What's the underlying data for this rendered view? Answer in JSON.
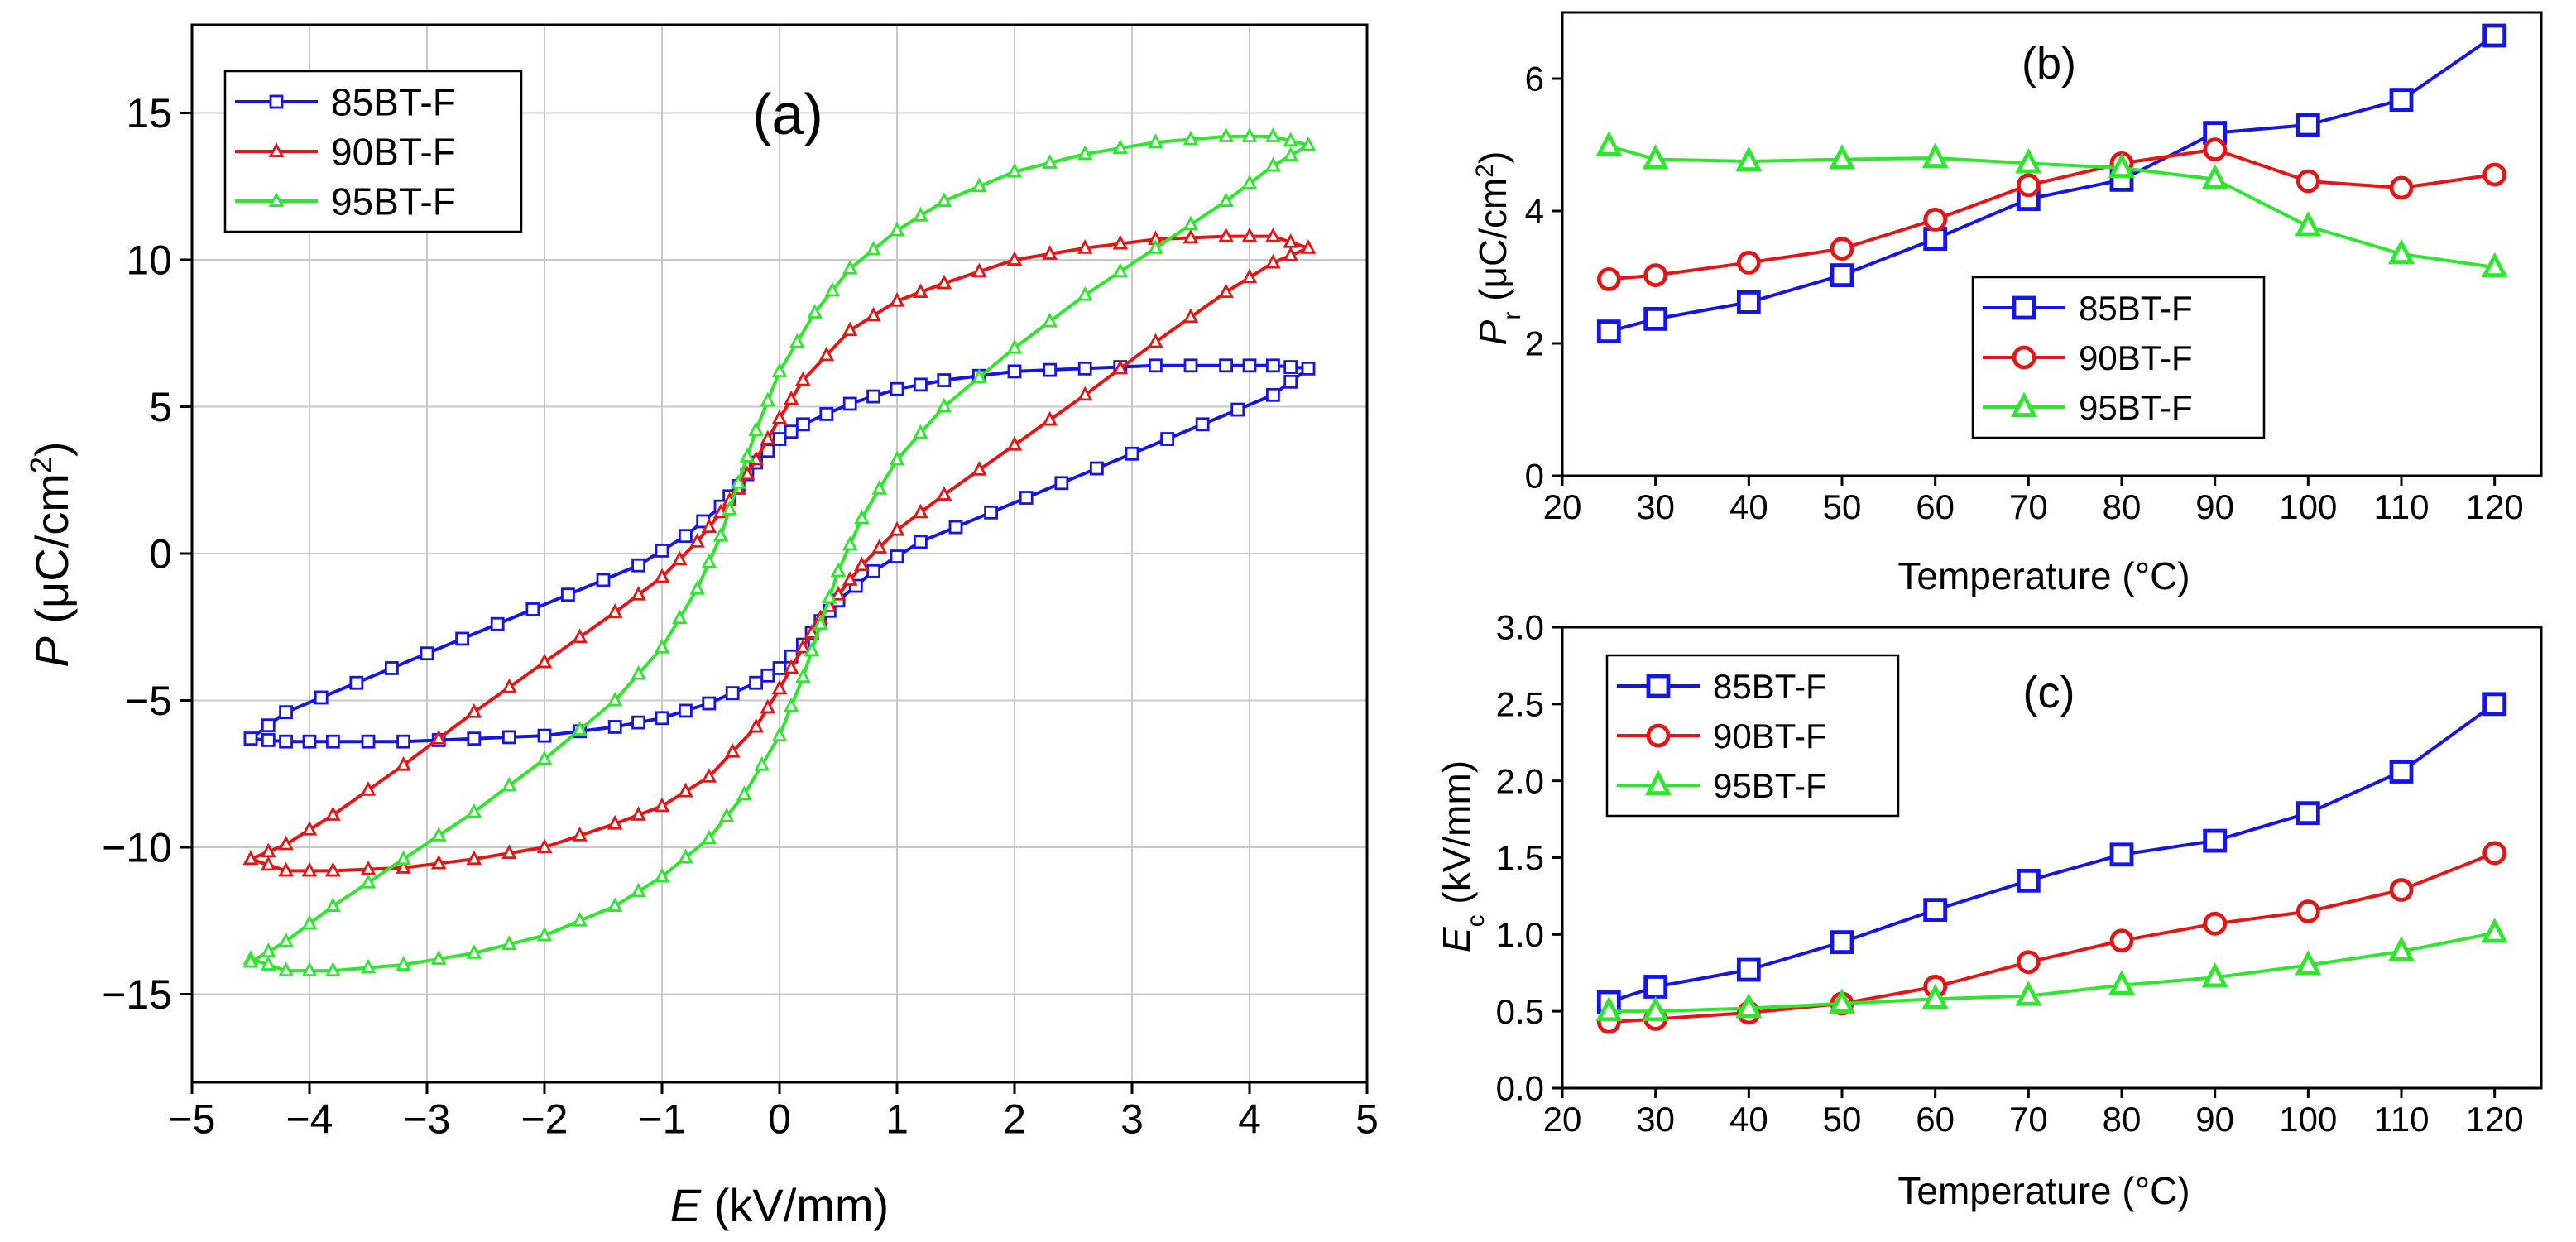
{
  "chart_data": [
    {
      "id": "a",
      "type": "line",
      "panel_label": "(a)",
      "xlabel_var": "E",
      "xlabel_unit": " (kV/mm)",
      "ylabel_var": "P",
      "ylabel_unit_pre": " (μC/cm",
      "ylabel_unit_sup": "2",
      "ylabel_unit_post": ")",
      "xlim": [
        -5,
        5
      ],
      "ylim": [
        -18,
        18
      ],
      "xticks": [
        -5,
        -4,
        -3,
        -2,
        -1,
        0,
        1,
        2,
        3,
        4,
        5
      ],
      "xtick_labels": [
        "−5",
        "−4",
        "−3",
        "−2",
        "−1",
        "0",
        "1",
        "2",
        "3",
        "4",
        "5"
      ],
      "yticks": [
        -15,
        -10,
        -5,
        0,
        5,
        10,
        15
      ],
      "ytick_labels": [
        "−15",
        "−10",
        "−5",
        "0",
        "5",
        "10",
        "15"
      ],
      "grid": true,
      "legend_position": "top-left",
      "series": [
        {
          "name": "85BT-F",
          "color": "#1515e6",
          "marker": "square",
          "upper": [
            [
              -4.5,
              -6.3
            ],
            [
              -4.2,
              -6.4
            ],
            [
              -3.8,
              -6.4
            ],
            [
              -3.2,
              -6.4
            ],
            [
              -2.6,
              -6.3
            ],
            [
              -2.0,
              -6.2
            ],
            [
              -1.4,
              -5.9
            ],
            [
              -1.0,
              -5.6
            ],
            [
              -0.6,
              -5.1
            ],
            [
              -0.2,
              -4.4
            ],
            [
              0.0,
              -3.9
            ],
            [
              0.2,
              -3.1
            ],
            [
              0.35,
              -2.3
            ],
            [
              0.5,
              -1.6
            ],
            [
              0.8,
              -0.6
            ],
            [
              1.2,
              0.4
            ],
            [
              1.8,
              1.4
            ],
            [
              2.4,
              2.4
            ],
            [
              3.0,
              3.4
            ],
            [
              3.6,
              4.4
            ],
            [
              4.2,
              5.4
            ],
            [
              4.5,
              6.3
            ]
          ],
          "lower": [
            [
              4.5,
              6.3
            ],
            [
              4.2,
              6.4
            ],
            [
              3.8,
              6.4
            ],
            [
              3.2,
              6.4
            ],
            [
              2.6,
              6.3
            ],
            [
              2.0,
              6.2
            ],
            [
              1.4,
              5.9
            ],
            [
              1.0,
              5.6
            ],
            [
              0.6,
              5.1
            ],
            [
              0.2,
              4.4
            ],
            [
              0.0,
              3.9
            ],
            [
              -0.2,
              3.1
            ],
            [
              -0.35,
              2.3
            ],
            [
              -0.5,
              1.6
            ],
            [
              -0.8,
              0.6
            ],
            [
              -1.2,
              -0.4
            ],
            [
              -1.8,
              -1.4
            ],
            [
              -2.4,
              -2.4
            ],
            [
              -3.0,
              -3.4
            ],
            [
              -3.6,
              -4.4
            ],
            [
              -4.2,
              -5.4
            ],
            [
              -4.5,
              -6.3
            ]
          ]
        },
        {
          "name": "90BT-F",
          "color": "#e61515",
          "marker": "triangle",
          "upper": [
            [
              -4.5,
              -10.4
            ],
            [
              -4.2,
              -10.8
            ],
            [
              -3.8,
              -10.8
            ],
            [
              -3.2,
              -10.7
            ],
            [
              -2.6,
              -10.4
            ],
            [
              -2.0,
              -10.0
            ],
            [
              -1.4,
              -9.2
            ],
            [
              -1.0,
              -8.6
            ],
            [
              -0.6,
              -7.6
            ],
            [
              -0.2,
              -5.9
            ],
            [
              0.0,
              -4.6
            ],
            [
              0.2,
              -3.2
            ],
            [
              0.35,
              -2.2
            ],
            [
              0.5,
              -1.4
            ],
            [
              0.7,
              -0.4
            ],
            [
              1.0,
              0.8
            ],
            [
              1.4,
              2.0
            ],
            [
              2.0,
              3.7
            ],
            [
              2.6,
              5.4
            ],
            [
              3.2,
              7.2
            ],
            [
              3.8,
              8.9
            ],
            [
              4.2,
              9.9
            ],
            [
              4.5,
              10.4
            ]
          ],
          "lower": [
            [
              4.5,
              10.4
            ],
            [
              4.2,
              10.8
            ],
            [
              3.8,
              10.8
            ],
            [
              3.2,
              10.7
            ],
            [
              2.6,
              10.4
            ],
            [
              2.0,
              10.0
            ],
            [
              1.4,
              9.2
            ],
            [
              1.0,
              8.6
            ],
            [
              0.6,
              7.6
            ],
            [
              0.2,
              5.9
            ],
            [
              0.0,
              4.6
            ],
            [
              -0.2,
              3.2
            ],
            [
              -0.35,
              2.2
            ],
            [
              -0.5,
              1.4
            ],
            [
              -0.7,
              0.4
            ],
            [
              -1.0,
              -0.8
            ],
            [
              -1.4,
              -2.0
            ],
            [
              -2.0,
              -3.7
            ],
            [
              -2.6,
              -5.4
            ],
            [
              -3.2,
              -7.2
            ],
            [
              -3.8,
              -8.9
            ],
            [
              -4.2,
              -9.9
            ],
            [
              -4.5,
              -10.4
            ]
          ]
        },
        {
          "name": "95BT-F",
          "color": "#2ee62e",
          "marker": "triangle",
          "upper": [
            [
              -4.5,
              -13.8
            ],
            [
              -4.2,
              -14.2
            ],
            [
              -3.8,
              -14.2
            ],
            [
              -3.2,
              -14.0
            ],
            [
              -2.6,
              -13.6
            ],
            [
              -2.0,
              -13.0
            ],
            [
              -1.4,
              -12.0
            ],
            [
              -1.0,
              -11.0
            ],
            [
              -0.6,
              -9.7
            ],
            [
              -0.3,
              -8.2
            ],
            [
              0.0,
              -6.2
            ],
            [
              0.2,
              -4.2
            ],
            [
              0.35,
              -2.4
            ],
            [
              0.5,
              -0.6
            ],
            [
              0.7,
              1.2
            ],
            [
              1.0,
              3.2
            ],
            [
              1.4,
              5.0
            ],
            [
              2.0,
              7.0
            ],
            [
              2.6,
              8.8
            ],
            [
              3.2,
              10.4
            ],
            [
              3.8,
              12.0
            ],
            [
              4.2,
              13.2
            ],
            [
              4.5,
              13.9
            ]
          ],
          "lower": [
            [
              4.5,
              13.9
            ],
            [
              4.2,
              14.2
            ],
            [
              3.8,
              14.2
            ],
            [
              3.2,
              14.0
            ],
            [
              2.6,
              13.6
            ],
            [
              2.0,
              13.0
            ],
            [
              1.4,
              12.0
            ],
            [
              1.0,
              11.0
            ],
            [
              0.6,
              9.7
            ],
            [
              0.3,
              8.2
            ],
            [
              0.0,
              6.2
            ],
            [
              -0.2,
              4.2
            ],
            [
              -0.35,
              2.4
            ],
            [
              -0.5,
              0.6
            ],
            [
              -0.7,
              -1.2
            ],
            [
              -1.0,
              -3.2
            ],
            [
              -1.4,
              -5.0
            ],
            [
              -2.0,
              -7.0
            ],
            [
              -2.6,
              -8.8
            ],
            [
              -3.2,
              -10.4
            ],
            [
              -3.8,
              -12.0
            ],
            [
              -4.2,
              -13.2
            ],
            [
              -4.5,
              -13.9
            ]
          ]
        }
      ]
    },
    {
      "id": "b",
      "type": "line",
      "panel_label": "(b)",
      "xlabel": "Temperature (°C)",
      "ylabel_var": "P",
      "ylabel_sub": "r",
      "ylabel_unit_pre": " (μC/cm",
      "ylabel_unit_sup": "2",
      "ylabel_unit_post": ")",
      "xlim": [
        20,
        125
      ],
      "ylim": [
        0,
        7
      ],
      "xticks": [
        20,
        30,
        40,
        50,
        60,
        70,
        80,
        90,
        100,
        110,
        120
      ],
      "xtick_labels": [
        "20",
        "30",
        "40",
        "50",
        "60",
        "70",
        "80",
        "90",
        "100",
        "110",
        "120"
      ],
      "yticks": [
        0,
        2,
        4,
        6
      ],
      "ytick_labels": [
        "0",
        "2",
        "4",
        "6"
      ],
      "grid": false,
      "legend_position": "center-right",
      "x": [
        25,
        30,
        40,
        50,
        60,
        70,
        80,
        90,
        100,
        110,
        120
      ],
      "series": [
        {
          "name": "85BT-F",
          "color": "#1515e6",
          "marker": "square",
          "values": [
            2.18,
            2.37,
            2.62,
            3.03,
            3.58,
            4.18,
            4.47,
            5.18,
            5.3,
            5.68,
            6.65
          ]
        },
        {
          "name": "90BT-F",
          "color": "#e61515",
          "marker": "circle",
          "values": [
            2.97,
            3.03,
            3.22,
            3.43,
            3.87,
            4.39,
            4.72,
            4.93,
            4.45,
            4.35,
            4.55
          ]
        },
        {
          "name": "95BT-F",
          "color": "#2ee62e",
          "marker": "triangle",
          "values": [
            4.98,
            4.78,
            4.75,
            4.78,
            4.8,
            4.72,
            4.65,
            4.48,
            3.77,
            3.35,
            3.15
          ]
        }
      ]
    },
    {
      "id": "c",
      "type": "line",
      "panel_label": "(c)",
      "xlabel": "Temperature (°C)",
      "ylabel_var": "E",
      "ylabel_sub": "c",
      "ylabel_unit": " (kV/mm)",
      "xlim": [
        20,
        125
      ],
      "ylim": [
        0,
        3
      ],
      "xticks": [
        20,
        30,
        40,
        50,
        60,
        70,
        80,
        90,
        100,
        110,
        120
      ],
      "xtick_labels": [
        "20",
        "30",
        "40",
        "50",
        "60",
        "70",
        "80",
        "90",
        "100",
        "110",
        "120"
      ],
      "yticks": [
        0,
        0.5,
        1.0,
        1.5,
        2.0,
        2.5,
        3.0
      ],
      "ytick_labels": [
        "0.0",
        "0.5",
        "1.0",
        "1.5",
        "2.0",
        "2.5",
        "3.0"
      ],
      "grid": false,
      "legend_position": "top-left",
      "x": [
        25,
        30,
        40,
        50,
        60,
        70,
        80,
        90,
        100,
        110,
        120
      ],
      "series": [
        {
          "name": "85BT-F",
          "color": "#1515e6",
          "marker": "square",
          "values": [
            0.56,
            0.66,
            0.77,
            0.95,
            1.16,
            1.35,
            1.52,
            1.61,
            1.79,
            2.06,
            2.5
          ]
        },
        {
          "name": "90BT-F",
          "color": "#e61515",
          "marker": "circle",
          "values": [
            0.43,
            0.45,
            0.49,
            0.55,
            0.66,
            0.82,
            0.96,
            1.07,
            1.15,
            1.29,
            1.53
          ]
        },
        {
          "name": "95BT-F",
          "color": "#2ee62e",
          "marker": "triangle",
          "values": [
            0.5,
            0.5,
            0.52,
            0.55,
            0.58,
            0.6,
            0.67,
            0.72,
            0.8,
            0.89,
            1.01
          ]
        }
      ]
    }
  ]
}
